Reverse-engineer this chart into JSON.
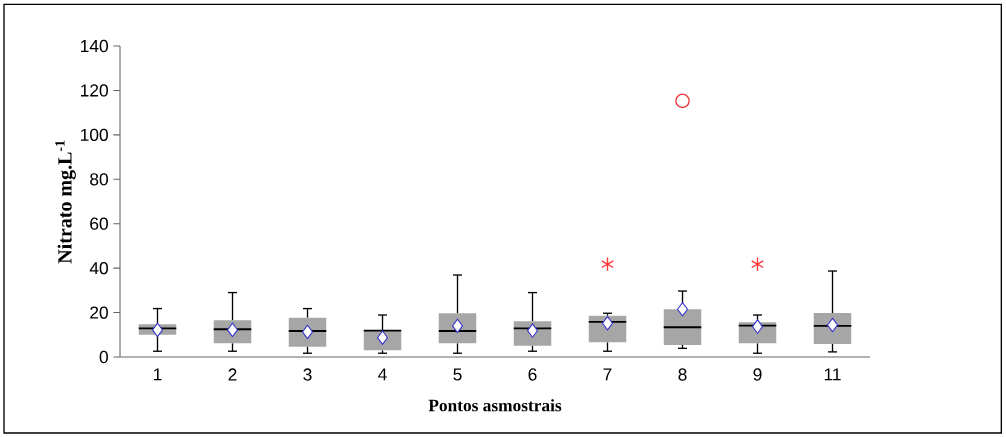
{
  "chart_data": {
    "type": "box",
    "xlabel": "Pontos asmostrais",
    "ylabel": "Nitrato mg.L$^{-1}$",
    "categories": [
      "1",
      "2",
      "3",
      "4",
      "5",
      "6",
      "7",
      "8",
      "9",
      "11"
    ],
    "ylim": [
      0,
      140
    ],
    "yticks": [
      0,
      20,
      40,
      60,
      80,
      100,
      120,
      140
    ],
    "grid": false,
    "series": [
      {
        "color": "#a6a6a6",
        "boxes": [
          {
            "low": 2.6,
            "q1": 10,
            "median": 12.9,
            "q3": 14.7,
            "high": 21.8,
            "mean": 12.2
          },
          {
            "low": 2.6,
            "q1": 6.2,
            "median": 12.5,
            "q3": 16.5,
            "high": 29,
            "mean": 12.2
          },
          {
            "low": 1.7,
            "q1": 4.6,
            "median": 11.7,
            "q3": 17.7,
            "high": 21.8,
            "mean": 11.3
          },
          {
            "low": 1.7,
            "q1": 3,
            "median": 11.9,
            "q3": 11.9,
            "high": 18.9,
            "mean": 8.7
          },
          {
            "low": 1.7,
            "q1": 6.2,
            "median": 11.7,
            "q3": 19.7,
            "high": 36.9,
            "mean": 14
          },
          {
            "low": 2.6,
            "q1": 5.1,
            "median": 12.9,
            "q3": 16.1,
            "high": 29,
            "mean": 11.9
          },
          {
            "low": 2.6,
            "q1": 6.6,
            "median": 15.8,
            "q3": 18.6,
            "high": 19.7,
            "mean": 15.2
          },
          {
            "low": 3.9,
            "q1": 5.4,
            "median": 13.4,
            "q3": 21.5,
            "high": 29.7,
            "mean": 21.5
          },
          {
            "low": 1.7,
            "q1": 6.2,
            "median": 14.1,
            "q3": 15.6,
            "high": 18.9,
            "mean": 13.7
          },
          {
            "low": 2.3,
            "q1": 5.9,
            "median": 14,
            "q3": 19.8,
            "high": 38.7,
            "mean": 14.4
          }
        ]
      },
      {
        "type": "scatter",
        "marker": "cross",
        "color": "#ff3333",
        "x": [
          "7",
          "9"
        ],
        "values": [
          41.8,
          41.8
        ]
      },
      {
        "type": "scatter",
        "marker": "circle",
        "color": "#e8383d",
        "x": [
          "8"
        ],
        "values": [
          115.3
        ]
      }
    ]
  }
}
